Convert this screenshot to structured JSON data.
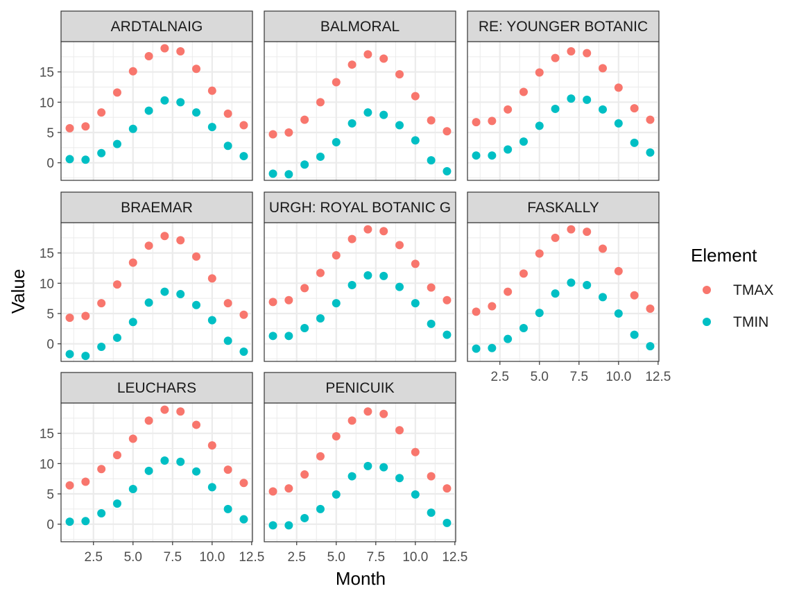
{
  "chart_data": {
    "type": "scatter",
    "xlabel": "Month",
    "ylabel": "Value",
    "xlim": [
      0.45,
      12.55
    ],
    "ylim": [
      -2.9,
      20.0
    ],
    "x_ticks": [
      "2.5",
      "5.0",
      "7.5",
      "10.0",
      "12.5"
    ],
    "y_ticks": [
      "0",
      "5",
      "10",
      "15"
    ],
    "grid": true,
    "legend": {
      "title": "Element",
      "placement": "right",
      "entries": [
        {
          "name": "TMAX",
          "color": "#F8766D"
        },
        {
          "name": "TMIN",
          "color": "#00BFC4"
        }
      ]
    },
    "facets": [
      {
        "name": "ARDTALNAIG",
        "x": [
          1,
          2,
          3,
          4,
          5,
          6,
          7,
          8,
          9,
          10,
          11,
          12
        ],
        "series": [
          {
            "name": "TMAX",
            "values": [
              5.7,
              6.0,
              8.3,
              11.6,
              15.1,
              17.6,
              18.9,
              18.4,
              15.5,
              11.9,
              8.1,
              6.2
            ]
          },
          {
            "name": "TMIN",
            "values": [
              0.6,
              0.5,
              1.6,
              3.1,
              5.6,
              8.6,
              10.3,
              10.0,
              8.3,
              5.9,
              2.8,
              1.1
            ]
          }
        ]
      },
      {
        "name": "BALMORAL",
        "x": [
          1,
          2,
          3,
          4,
          5,
          6,
          7,
          8,
          9,
          10,
          11,
          12
        ],
        "series": [
          {
            "name": "TMAX",
            "values": [
              4.7,
              5.0,
              7.1,
              10.0,
              13.3,
              16.2,
              17.9,
              17.2,
              14.6,
              11.0,
              7.0,
              5.2
            ]
          },
          {
            "name": "TMIN",
            "values": [
              -1.8,
              -1.9,
              -0.3,
              1.0,
              3.4,
              6.5,
              8.3,
              7.9,
              6.2,
              3.7,
              0.4,
              -1.4
            ]
          }
        ]
      },
      {
        "name": "RE: YOUNGER BOTANIC",
        "x": [
          1,
          2,
          3,
          4,
          5,
          6,
          7,
          8,
          9,
          10,
          11,
          12
        ],
        "series": [
          {
            "name": "TMAX",
            "values": [
              6.7,
              6.9,
              8.8,
              11.7,
              14.9,
              17.3,
              18.4,
              18.1,
              15.6,
              12.4,
              9.0,
              7.1
            ]
          },
          {
            "name": "TMIN",
            "values": [
              1.2,
              1.2,
              2.2,
              3.5,
              6.1,
              8.9,
              10.6,
              10.4,
              8.8,
              6.5,
              3.3,
              1.7
            ]
          }
        ]
      },
      {
        "name": "BRAEMAR",
        "x": [
          1,
          2,
          3,
          4,
          5,
          6,
          7,
          8,
          9,
          10,
          11,
          12
        ],
        "series": [
          {
            "name": "TMAX",
            "values": [
              4.3,
              4.6,
              6.7,
              9.8,
              13.4,
              16.2,
              17.8,
              17.1,
              14.4,
              10.8,
              6.7,
              4.8
            ]
          },
          {
            "name": "TMIN",
            "values": [
              -1.7,
              -2.0,
              -0.5,
              1.0,
              3.6,
              6.8,
              8.6,
              8.2,
              6.4,
              3.9,
              0.5,
              -1.3
            ]
          }
        ]
      },
      {
        "name": "URGH: ROYAL BOTANIC G",
        "x": [
          1,
          2,
          3,
          4,
          5,
          6,
          7,
          8,
          9,
          10,
          11,
          12
        ],
        "series": [
          {
            "name": "TMAX",
            "values": [
              6.9,
              7.2,
              9.2,
              11.7,
              14.6,
              17.3,
              18.9,
              18.6,
              16.3,
              13.2,
              9.3,
              7.2
            ]
          },
          {
            "name": "TMIN",
            "values": [
              1.3,
              1.3,
              2.6,
              4.2,
              6.7,
              9.7,
              11.3,
              11.2,
              9.4,
              6.7,
              3.3,
              1.5
            ]
          }
        ]
      },
      {
        "name": "FASKALLY",
        "x": [
          1,
          2,
          3,
          4,
          5,
          6,
          7,
          8,
          9,
          10,
          11,
          12
        ],
        "series": [
          {
            "name": "TMAX",
            "values": [
              5.3,
              6.2,
              8.6,
              11.6,
              14.9,
              17.5,
              18.9,
              18.5,
              15.7,
              12.0,
              8.0,
              5.8
            ]
          },
          {
            "name": "TMIN",
            "values": [
              -0.8,
              -0.7,
              0.8,
              2.6,
              5.1,
              8.3,
              10.1,
              9.7,
              7.7,
              5.0,
              1.5,
              -0.4
            ]
          }
        ]
      },
      {
        "name": "LEUCHARS",
        "x": [
          1,
          2,
          3,
          4,
          5,
          6,
          7,
          8,
          9,
          10,
          11,
          12
        ],
        "series": [
          {
            "name": "TMAX",
            "values": [
              6.4,
              7.0,
              9.1,
              11.4,
              14.1,
              17.1,
              18.9,
              18.6,
              16.4,
              13.0,
              9.0,
              6.8
            ]
          },
          {
            "name": "TMIN",
            "values": [
              0.4,
              0.5,
              1.8,
              3.4,
              5.8,
              8.8,
              10.5,
              10.3,
              8.7,
              6.1,
              2.5,
              0.8
            ]
          }
        ]
      },
      {
        "name": "PENICUIK",
        "x": [
          1,
          2,
          3,
          4,
          5,
          6,
          7,
          8,
          9,
          10,
          11,
          12
        ],
        "series": [
          {
            "name": "TMAX",
            "values": [
              5.4,
              5.9,
              8.2,
              11.2,
              14.5,
              17.1,
              18.6,
              18.2,
              15.5,
              11.9,
              7.9,
              5.9
            ]
          },
          {
            "name": "TMIN",
            "values": [
              -0.2,
              -0.2,
              1.0,
              2.5,
              4.9,
              7.9,
              9.6,
              9.4,
              7.6,
              4.9,
              1.9,
              0.2
            ]
          }
        ]
      }
    ]
  }
}
